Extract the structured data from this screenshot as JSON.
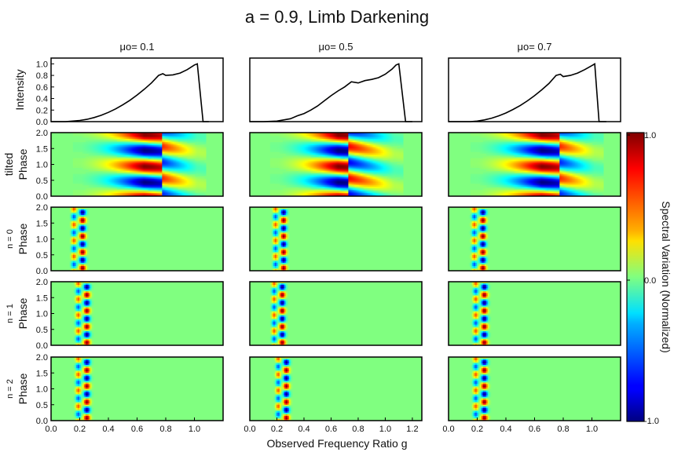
{
  "figure": {
    "title": "a = 0.9, Limb Darkening",
    "xlabel": "Observed Frequency Ratio g",
    "column_titles": [
      "μo= 0.1",
      "μo= 0.5",
      "μo= 0.7"
    ],
    "row_labels": [
      {
        "line1": "Intensity",
        "line2": ""
      },
      {
        "line1": "tilted",
        "line2": "Phase"
      },
      {
        "line1": "n = 0",
        "line2": "Phase"
      },
      {
        "line1": "n = 1",
        "line2": "Phase"
      },
      {
        "line1": "n = 2",
        "line2": "Phase"
      }
    ],
    "colorbar": {
      "label": "Spectral Variation (Normalized)",
      "ticks": [
        "1.0",
        "0.0",
        "-1.0"
      ],
      "colormap": "jet",
      "range": [
        -1.0,
        1.0
      ]
    },
    "colors": {
      "background": "#ffffff",
      "axes": "#000000",
      "field": "#80ff80"
    }
  },
  "chart_data": [
    {
      "type": "line",
      "row": "Intensity",
      "panels": [
        {
          "mu_o": 0.1,
          "x": [
            0.0,
            0.05,
            0.1,
            0.15,
            0.2,
            0.25,
            0.3,
            0.35,
            0.4,
            0.45,
            0.5,
            0.55,
            0.6,
            0.65,
            0.7,
            0.75,
            0.78,
            0.8,
            0.85,
            0.9,
            0.95,
            1.0,
            1.02,
            1.06,
            1.1
          ],
          "y": [
            0.0,
            0.0,
            0.0,
            0.01,
            0.02,
            0.04,
            0.07,
            0.11,
            0.16,
            0.22,
            0.29,
            0.37,
            0.46,
            0.56,
            0.67,
            0.8,
            0.83,
            0.8,
            0.81,
            0.84,
            0.9,
            0.98,
            1.0,
            0.0,
            0.0
          ]
        },
        {
          "mu_o": 0.5,
          "x": [
            0.0,
            0.1,
            0.2,
            0.3,
            0.35,
            0.4,
            0.45,
            0.5,
            0.55,
            0.6,
            0.65,
            0.7,
            0.75,
            0.8,
            0.85,
            0.9,
            0.95,
            1.0,
            1.05,
            1.08,
            1.1,
            1.15,
            1.2
          ],
          "y": [
            0.0,
            0.0,
            0.01,
            0.05,
            0.1,
            0.14,
            0.2,
            0.27,
            0.36,
            0.45,
            0.53,
            0.6,
            0.69,
            0.67,
            0.71,
            0.73,
            0.76,
            0.82,
            0.91,
            0.98,
            1.0,
            0.0,
            0.0
          ]
        },
        {
          "mu_o": 0.7,
          "x": [
            0.0,
            0.1,
            0.15,
            0.2,
            0.25,
            0.3,
            0.35,
            0.4,
            0.45,
            0.5,
            0.55,
            0.6,
            0.65,
            0.7,
            0.75,
            0.78,
            0.8,
            0.85,
            0.9,
            0.95,
            1.0,
            1.02,
            1.05,
            1.1
          ],
          "y": [
            0.0,
            0.0,
            0.0,
            0.01,
            0.03,
            0.06,
            0.1,
            0.15,
            0.21,
            0.28,
            0.36,
            0.45,
            0.55,
            0.66,
            0.8,
            0.82,
            0.78,
            0.8,
            0.84,
            0.9,
            0.97,
            1.0,
            0.0,
            0.0
          ]
        }
      ],
      "ylabel": "Intensity",
      "ylim": [
        0.0,
        1.1
      ],
      "yticks": [
        0.0,
        0.2,
        0.4,
        0.6,
        0.8,
        1.0
      ]
    },
    {
      "type": "heatmap",
      "rows": [
        "tilted",
        "n = 0",
        "n = 1",
        "n = 2"
      ],
      "ylabel": "Phase",
      "ylim": [
        0.0,
        2.0
      ],
      "yticks": [
        0.0,
        0.5,
        1.0,
        1.5,
        2.0
      ],
      "panels": [
        {
          "mu_o": 0.1,
          "tilted_range": [
            0.15,
            1.08
          ],
          "tilted_edge": 0.78,
          "n0_center": 0.22,
          "n1_center": 0.25,
          "n2_center": 0.25
        },
        {
          "mu_o": 0.5,
          "tilted_range": [
            0.15,
            1.13
          ],
          "tilted_edge": 0.73,
          "n0_center": 0.25,
          "n1_center": 0.24,
          "n2_center": 0.27
        },
        {
          "mu_o": 0.7,
          "tilted_range": [
            0.15,
            1.08
          ],
          "tilted_edge": 0.78,
          "n0_center": 0.24,
          "n1_center": 0.25,
          "n2_center": 0.25
        }
      ]
    }
  ],
  "axes": {
    "xticks": [
      [
        "0.0",
        "0.2",
        "0.4",
        "0.6",
        "0.8",
        "1.0"
      ],
      [
        "0.0",
        "0.2",
        "0.4",
        "0.6",
        "0.8",
        "1.0",
        "1.2"
      ],
      [
        "0.0",
        "0.2",
        "0.4",
        "0.6",
        "0.8",
        "1.0"
      ]
    ],
    "xlim": [
      [
        0.0,
        1.2
      ],
      [
        0.0,
        1.27
      ],
      [
        0.0,
        1.2
      ]
    ],
    "intensity_yticks": [
      "0.0",
      "0.2",
      "0.4",
      "0.6",
      "0.8",
      "1.0"
    ],
    "phase_yticks": [
      "0.0",
      "0.5",
      "1.0",
      "1.5",
      "2.0"
    ]
  }
}
